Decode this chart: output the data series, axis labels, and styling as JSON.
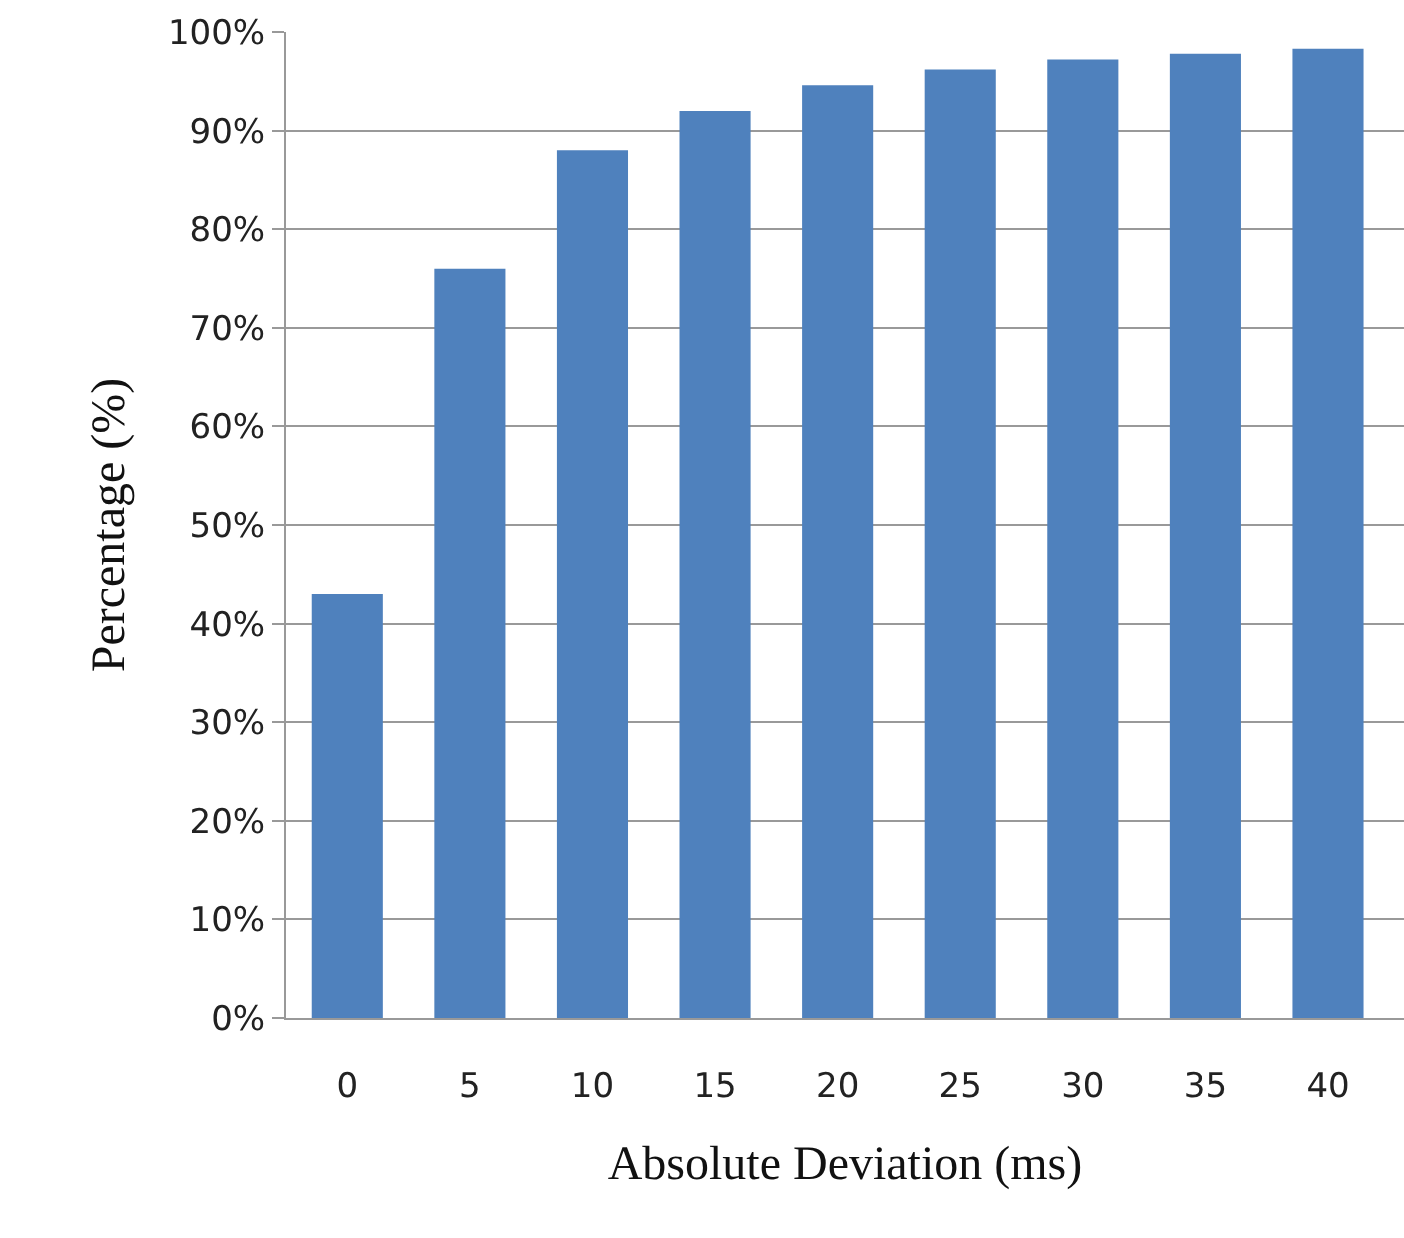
{
  "chart_data": {
    "type": "bar",
    "xlabel": "Absolute Deviation (ms)",
    "ylabel": "Percentage (%)",
    "categories": [
      "0",
      "5",
      "10",
      "15",
      "20",
      "25",
      "30",
      "35",
      "40"
    ],
    "values": [
      43,
      76,
      88,
      92,
      94.6,
      96.2,
      97.2,
      97.8,
      98.3
    ],
    "color": "#4f81bd",
    "ylim": [
      0,
      100
    ],
    "yticks": [
      {
        "value": 0,
        "label": "0%"
      },
      {
        "value": 10,
        "label": "10%"
      },
      {
        "value": 20,
        "label": "20%"
      },
      {
        "value": 30,
        "label": "30%"
      },
      {
        "value": 40,
        "label": "40%"
      },
      {
        "value": 50,
        "label": "50%"
      },
      {
        "value": 60,
        "label": "60%"
      },
      {
        "value": 70,
        "label": "70%"
      },
      {
        "value": 80,
        "label": "80%"
      },
      {
        "value": 90,
        "label": "90%"
      },
      {
        "value": 100,
        "label": "100%"
      }
    ],
    "grid": "y"
  }
}
